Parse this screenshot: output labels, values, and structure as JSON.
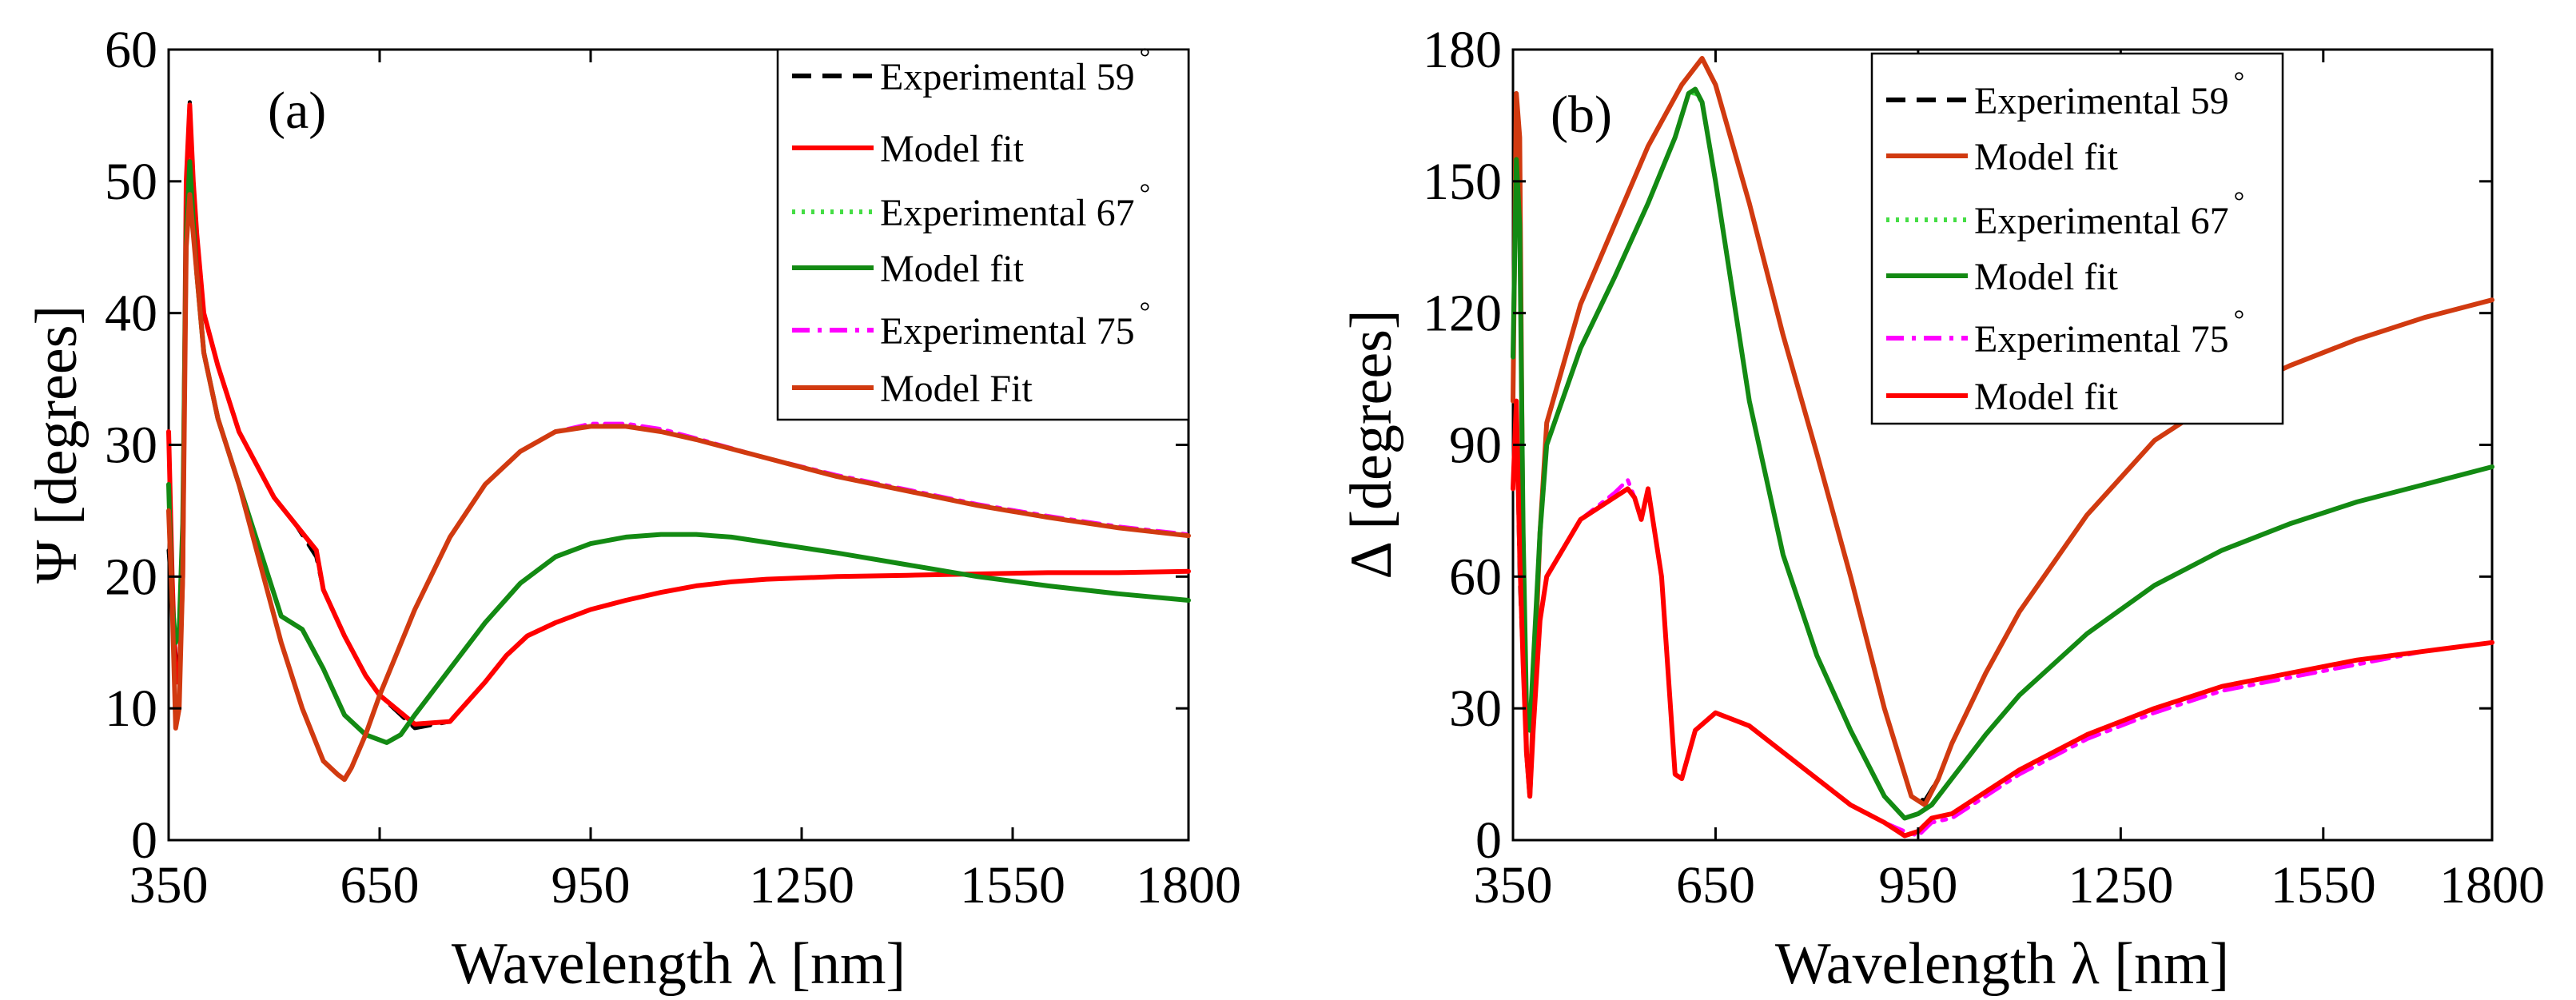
{
  "chart_data": [
    {
      "type": "line",
      "panel_label": "(a)",
      "xlabel": "Wavelength λ [nm]",
      "ylabel": "Ψ [degrees]",
      "xlim": [
        350,
        1800
      ],
      "ylim": [
        0,
        60
      ],
      "xticks": [
        "350",
        "650",
        "950",
        "1250",
        "1550",
        "1800"
      ],
      "xtick_values": [
        350,
        650,
        950,
        1250,
        1550,
        1800
      ],
      "yticks": [
        "0",
        "10",
        "20",
        "30",
        "40",
        "50",
        "60"
      ],
      "ytick_values": [
        0,
        10,
        20,
        30,
        40,
        50,
        60
      ],
      "legend_position": "top-right",
      "series": [
        {
          "name": "Experimental 59°",
          "label_main": "Experimental 59",
          "degree": "°",
          "color": "#000000",
          "dash": "dashed",
          "x": [
            350,
            355,
            360,
            365,
            370,
            375,
            380,
            385,
            390,
            395,
            400,
            420,
            450,
            480,
            500,
            530,
            560,
            570,
            600,
            630,
            650,
            700,
            750,
            800,
            830,
            860,
            900,
            950,
            1000,
            1050,
            1100,
            1150,
            1200,
            1300,
            1400,
            1500,
            1600,
            1700,
            1800
          ],
          "y": [
            22,
            18,
            14,
            13,
            20,
            50,
            56,
            50,
            46,
            43,
            40,
            36,
            31,
            28,
            26,
            24,
            21.5,
            19,
            15.5,
            12.5,
            11,
            8.5,
            9,
            12,
            14,
            15.5,
            16.5,
            17.5,
            18.2,
            18.8,
            19.3,
            19.6,
            19.8,
            20,
            20.1,
            20.2,
            20.3,
            20.3,
            20.4
          ]
        },
        {
          "name": "Model fit",
          "label_main": "Model fit",
          "degree": "",
          "color": "#ff0000",
          "dash": "solid",
          "x": [
            350,
            355,
            360,
            365,
            370,
            375,
            380,
            385,
            390,
            395,
            400,
            420,
            450,
            480,
            500,
            530,
            560,
            570,
            600,
            630,
            650,
            700,
            750,
            800,
            830,
            860,
            900,
            950,
            1000,
            1050,
            1100,
            1150,
            1200,
            1300,
            1400,
            1500,
            1600,
            1700,
            1800
          ],
          "y": [
            31,
            20,
            12,
            12,
            20,
            50,
            55.8,
            50,
            46,
            43,
            40,
            36,
            31,
            28,
            26,
            24,
            22,
            19,
            15.5,
            12.5,
            11,
            8.8,
            9,
            12,
            14,
            15.5,
            16.5,
            17.5,
            18.2,
            18.8,
            19.3,
            19.6,
            19.8,
            20,
            20.1,
            20.2,
            20.3,
            20.3,
            20.4
          ]
        },
        {
          "name": "Experimental 67°",
          "label_main": "Experimental 67",
          "degree": "°",
          "color": "#44dd44",
          "dash": "dotted",
          "x": [
            350,
            355,
            360,
            365,
            370,
            375,
            380,
            385,
            390,
            395,
            400,
            420,
            450,
            480,
            510,
            540,
            570,
            600,
            630,
            660,
            680,
            700,
            750,
            800,
            850,
            900,
            950,
            1000,
            1050,
            1100,
            1150,
            1200,
            1300,
            1400,
            1500,
            1600,
            1700,
            1800
          ],
          "y": [
            27,
            18,
            15,
            16,
            24,
            46,
            51,
            47,
            43,
            40,
            37,
            32,
            27,
            22,
            17,
            16,
            13,
            9.5,
            8,
            7.4,
            8,
            9.5,
            13,
            16.5,
            19.5,
            21.5,
            22.5,
            23,
            23.2,
            23.2,
            23,
            22.6,
            21.8,
            20.9,
            20,
            19.3,
            18.7,
            18.2
          ]
        },
        {
          "name": "Model fit",
          "label_main": "Model fit",
          "degree": "",
          "color": "#138a13",
          "dash": "solid",
          "x": [
            350,
            355,
            360,
            365,
            370,
            375,
            380,
            385,
            390,
            395,
            400,
            420,
            450,
            480,
            510,
            540,
            570,
            600,
            630,
            660,
            680,
            700,
            750,
            800,
            850,
            900,
            950,
            1000,
            1050,
            1100,
            1150,
            1200,
            1300,
            1400,
            1500,
            1600,
            1700,
            1800
          ],
          "y": [
            27,
            18,
            15,
            16,
            24,
            46,
            51.5,
            47,
            43,
            40,
            37,
            32,
            27,
            22,
            17,
            16,
            13,
            9.5,
            8,
            7.4,
            8,
            9.5,
            13,
            16.5,
            19.5,
            21.5,
            22.5,
            23,
            23.2,
            23.2,
            23,
            22.6,
            21.8,
            20.9,
            20,
            19.3,
            18.7,
            18.2
          ]
        },
        {
          "name": "Experimental 75°",
          "label_main": "Experimental 75",
          "degree": "°",
          "color": "#ff00ff",
          "dash": "dashdot",
          "x": [
            350,
            355,
            360,
            365,
            370,
            375,
            380,
            385,
            390,
            395,
            400,
            420,
            450,
            480,
            510,
            540,
            570,
            590,
            600,
            610,
            630,
            650,
            700,
            750,
            800,
            850,
            900,
            950,
            1000,
            1050,
            1100,
            1200,
            1300,
            1400,
            1500,
            1600,
            1700,
            1800
          ],
          "y": [
            25,
            18,
            9,
            10,
            20,
            45,
            48.5,
            46,
            43,
            40,
            37,
            32,
            27,
            21,
            15,
            10,
            6,
            5,
            4.7,
            5.5,
            8,
            11,
            17.5,
            23,
            27,
            29.5,
            31,
            31.6,
            31.6,
            31.2,
            30.5,
            29,
            27.7,
            26.6,
            25.5,
            24.6,
            23.8,
            23.2
          ]
        },
        {
          "name": "Model Fit",
          "label_main": "Model Fit",
          "degree": "",
          "color": "#d13a10",
          "dash": "solid",
          "x": [
            350,
            355,
            360,
            365,
            370,
            375,
            380,
            385,
            390,
            395,
            400,
            420,
            450,
            480,
            510,
            540,
            570,
            590,
            600,
            610,
            630,
            650,
            700,
            750,
            800,
            850,
            900,
            950,
            1000,
            1050,
            1100,
            1200,
            1300,
            1400,
            1500,
            1600,
            1700,
            1800
          ],
          "y": [
            25,
            18,
            8.5,
            10,
            20,
            45,
            49,
            46,
            43,
            40,
            37,
            32,
            27,
            21,
            15,
            10,
            6,
            5,
            4.6,
            5.5,
            8,
            11,
            17.5,
            23,
            27,
            29.5,
            31,
            31.4,
            31.4,
            31,
            30.4,
            29,
            27.6,
            26.5,
            25.4,
            24.5,
            23.7,
            23.1
          ]
        }
      ]
    },
    {
      "type": "line",
      "panel_label": "(b)",
      "xlabel": "Wavelength λ [nm]",
      "ylabel": "Δ [degrees]",
      "xlim": [
        350,
        1800
      ],
      "ylim": [
        0,
        180
      ],
      "xticks": [
        "350",
        "650",
        "950",
        "1250",
        "1550",
        "1800"
      ],
      "xtick_values": [
        350,
        650,
        950,
        1250,
        1550,
        1800
      ],
      "yticks": [
        "0",
        "30",
        "60",
        "90",
        "120",
        "150",
        "180"
      ],
      "ytick_values": [
        0,
        30,
        60,
        90,
        120,
        150,
        180
      ],
      "legend_position": "top-center",
      "series": [
        {
          "name": "Experimental 59°",
          "label_main": "Experimental 59",
          "degree": "°",
          "color": "#000000",
          "dash": "dashed",
          "x": [
            350,
            355,
            360,
            365,
            370,
            375,
            380,
            390,
            400,
            450,
            500,
            550,
            600,
            620,
            630,
            640,
            650,
            700,
            750,
            800,
            850,
            900,
            940,
            960,
            980,
            1000,
            1050,
            1100,
            1200,
            1300,
            1400,
            1500,
            1600,
            1700,
            1800
          ],
          "y": [
            80,
            100,
            60,
            40,
            20,
            10,
            30,
            70,
            95,
            122,
            140,
            158,
            172,
            176,
            178,
            175,
            172,
            145,
            115,
            88,
            60,
            30,
            10,
            9,
            14,
            22,
            38,
            52,
            74,
            91,
            101,
            108,
            114,
            119,
            123
          ]
        },
        {
          "name": "Model fit",
          "label_main": "Model fit",
          "degree": "",
          "color": "#d13a10",
          "dash": "solid",
          "x": [
            350,
            355,
            360,
            365,
            370,
            375,
            380,
            390,
            400,
            450,
            500,
            550,
            600,
            620,
            630,
            640,
            650,
            700,
            750,
            800,
            850,
            900,
            940,
            960,
            980,
            1000,
            1050,
            1100,
            1200,
            1300,
            1400,
            1500,
            1600,
            1700,
            1800
          ],
          "y": [
            100,
            170,
            160,
            60,
            20,
            10,
            30,
            70,
            95,
            122,
            140,
            158,
            172,
            176,
            178,
            175,
            172,
            145,
            115,
            88,
            60,
            30,
            10,
            8,
            14,
            22,
            38,
            52,
            74,
            91,
            101,
            108,
            114,
            119,
            123
          ]
        },
        {
          "name": "Experimental 67°",
          "label_main": "Experimental 67",
          "degree": "°",
          "color": "#44dd44",
          "dash": "dotted",
          "x": [
            350,
            355,
            360,
            365,
            370,
            375,
            380,
            390,
            400,
            450,
            500,
            550,
            590,
            610,
            620,
            630,
            650,
            700,
            750,
            800,
            850,
            900,
            930,
            950,
            970,
            1000,
            1050,
            1100,
            1200,
            1300,
            1400,
            1500,
            1600,
            1700,
            1800
          ],
          "y": [
            110,
            155,
            140,
            70,
            30,
            25,
            40,
            70,
            90,
            112,
            128,
            145,
            160,
            170,
            170,
            168,
            150,
            100,
            65,
            42,
            25,
            10,
            5,
            6,
            8,
            14,
            24,
            33,
            47,
            58,
            66,
            72,
            77,
            81,
            85
          ]
        },
        {
          "name": "Model fit",
          "label_main": "Model fit",
          "degree": "",
          "color": "#138a13",
          "dash": "solid",
          "x": [
            350,
            355,
            360,
            365,
            370,
            375,
            380,
            390,
            400,
            450,
            500,
            550,
            590,
            610,
            620,
            630,
            650,
            700,
            750,
            800,
            850,
            900,
            930,
            950,
            970,
            1000,
            1050,
            1100,
            1200,
            1300,
            1400,
            1500,
            1600,
            1700,
            1800
          ],
          "y": [
            110,
            155,
            140,
            70,
            30,
            25,
            40,
            70,
            90,
            112,
            128,
            145,
            160,
            170,
            171,
            168,
            150,
            100,
            65,
            42,
            25,
            10,
            5,
            6,
            8,
            14,
            24,
            33,
            47,
            58,
            66,
            72,
            77,
            81,
            85
          ]
        },
        {
          "name": "Experimental 75°",
          "label_main": "Experimental 75",
          "degree": "°",
          "color": "#ff00ff",
          "dash": "dashdot",
          "x": [
            350,
            355,
            360,
            365,
            370,
            375,
            380,
            390,
            400,
            450,
            500,
            520,
            530,
            540,
            550,
            570,
            590,
            600,
            620,
            650,
            700,
            750,
            800,
            850,
            900,
            930,
            950,
            970,
            1000,
            1100,
            1200,
            1300,
            1400,
            1500,
            1600,
            1700,
            1800
          ],
          "y": [
            80,
            100,
            65,
            40,
            20,
            12,
            25,
            50,
            60,
            73,
            79,
            82,
            78,
            73,
            80,
            60,
            15,
            14,
            25,
            29,
            26,
            20,
            14,
            8,
            4,
            2,
            1,
            4,
            5,
            15,
            23,
            29,
            34,
            37,
            40,
            43,
            45
          ]
        },
        {
          "name": "Model fit",
          "label_main": "Model fit",
          "degree": "",
          "color": "#ff0000",
          "dash": "solid",
          "x": [
            350,
            355,
            360,
            365,
            370,
            375,
            380,
            390,
            400,
            450,
            500,
            520,
            530,
            540,
            550,
            570,
            590,
            600,
            620,
            650,
            700,
            750,
            800,
            850,
            900,
            930,
            950,
            970,
            1000,
            1100,
            1200,
            1300,
            1400,
            1500,
            1600,
            1700,
            1800
          ],
          "y": [
            80,
            100,
            65,
            40,
            20,
            10,
            25,
            50,
            60,
            73,
            78,
            80,
            78,
            73,
            80,
            60,
            15,
            14,
            25,
            29,
            26,
            20,
            14,
            8,
            4,
            1,
            2,
            5,
            6,
            16,
            24,
            30,
            35,
            38,
            41,
            43,
            45
          ]
        }
      ]
    }
  ]
}
